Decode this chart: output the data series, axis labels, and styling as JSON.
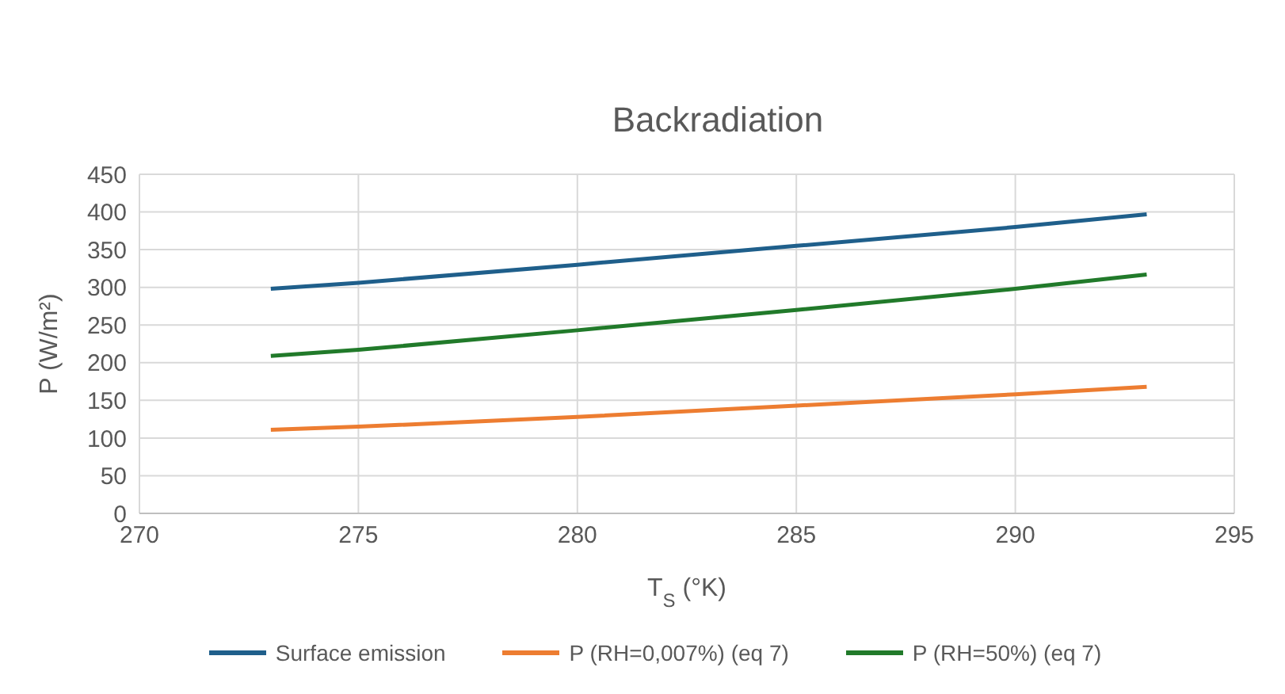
{
  "chart_data": {
    "type": "line",
    "title": "Backradiation",
    "xlabel": "T$_{S}$ (°K)",
    "ylabel": "P (W/m²)",
    "x": [
      273,
      275,
      280,
      285,
      290,
      293
    ],
    "series": [
      {
        "name": "Surface emission",
        "color": "#1f5f8b",
        "values": [
          298,
          306,
          330,
          355,
          380,
          397
        ]
      },
      {
        "name": "P (RH=0,007%) (eq 7)",
        "color": "#ed7d31",
        "values": [
          111,
          115,
          128,
          143,
          158,
          168
        ]
      },
      {
        "name": "P (RH=50%) (eq 7)",
        "color": "#217a2a",
        "values": [
          209,
          217,
          243,
          270,
          298,
          317
        ]
      }
    ],
    "xlim": [
      270,
      295
    ],
    "xticks": [
      270,
      275,
      280,
      285,
      290,
      295
    ],
    "ylim": [
      0,
      450
    ],
    "yticks": [
      0,
      50,
      100,
      150,
      200,
      250,
      300,
      350,
      400,
      450
    ],
    "grid": true,
    "legend": "bottom",
    "marker": "none",
    "line_style": "solid"
  }
}
